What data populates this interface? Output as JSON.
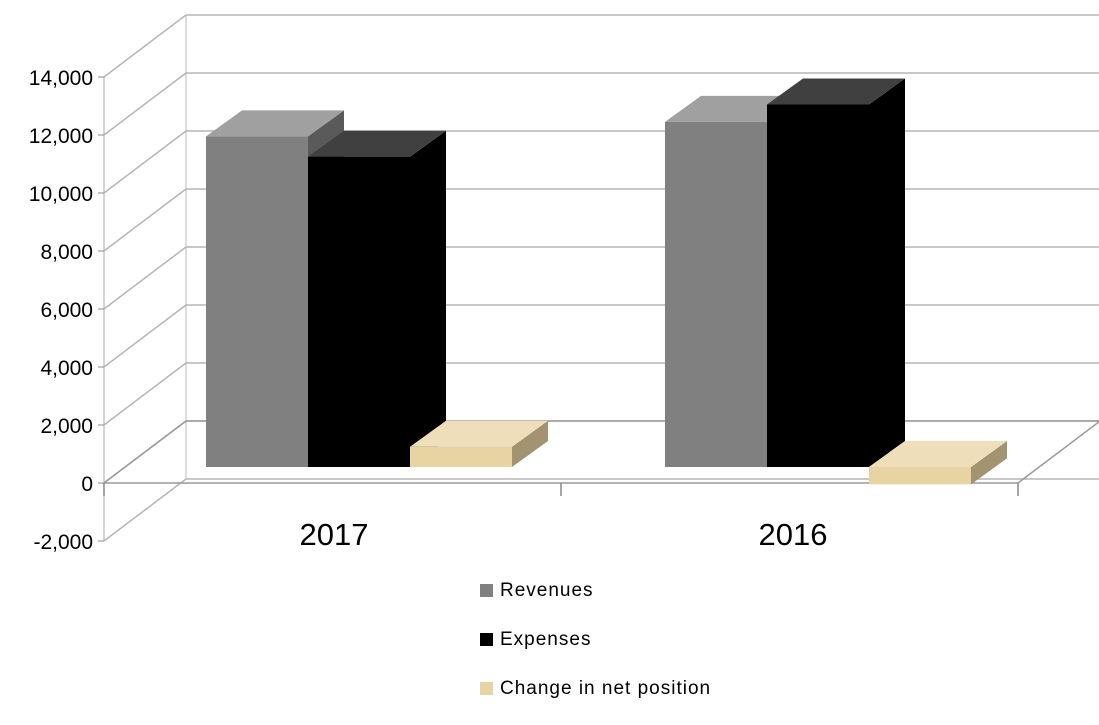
{
  "chart_data": {
    "type": "bar",
    "categories": [
      "2017",
      "2016"
    ],
    "series": [
      {
        "name": "Revenues",
        "values": [
          11400,
          11900
        ],
        "color": "#808080"
      },
      {
        "name": "Expenses",
        "values": [
          10700,
          12500
        ],
        "color": "#000000"
      },
      {
        "name": "Change in net position",
        "values": [
          700,
          -600
        ],
        "color": "#e8d3a2"
      }
    ],
    "ylim": [
      -2000,
      14000
    ],
    "yticks": [
      "-2,000",
      "0",
      "2,000",
      "4,000",
      "6,000",
      "8,000",
      "10,000",
      "12,000",
      "14,000"
    ],
    "grid": true,
    "legend": "bottom",
    "style": "3d-column"
  }
}
